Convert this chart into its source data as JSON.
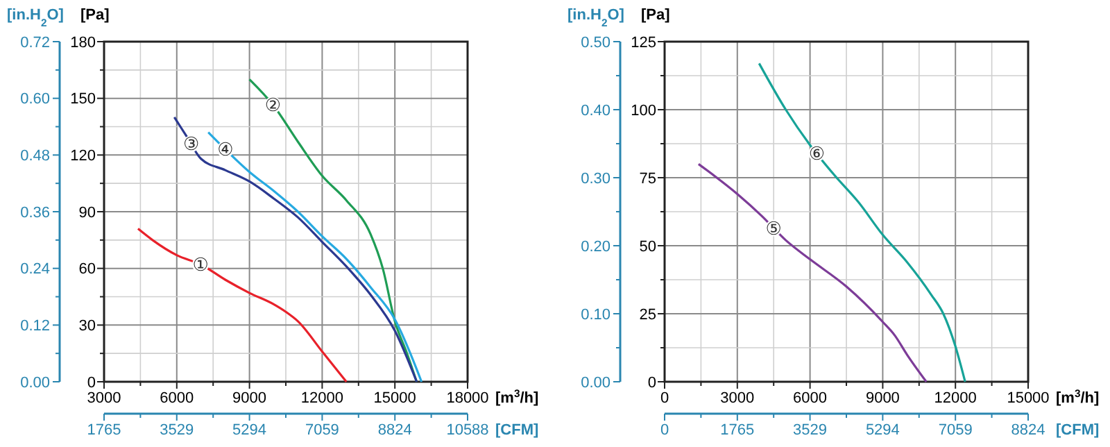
{
  "chart_data": [
    {
      "type": "line",
      "xlabel": "[m$^{3}$/h]",
      "ylabel": "[Pa]",
      "y2label": "[in.H$_{2}$O]",
      "x2label": "[CFM]",
      "grid": true,
      "marker": "none",
      "line_style": "solid",
      "xlim": [
        3000,
        18000
      ],
      "xticks": [
        3000,
        {
          "value": 4500,
          "label": null
        },
        6000,
        {
          "value": 7500,
          "label": null
        },
        9000,
        {
          "value": 10500,
          "label": null
        },
        12000,
        {
          "value": 13500,
          "label": null
        },
        15000,
        {
          "value": 16500,
          "label": null
        },
        18000
      ],
      "ylim": [
        0,
        180
      ],
      "yticks": [
        0,
        {
          "value": 15,
          "label": null
        },
        30,
        {
          "value": 45,
          "label": null
        },
        60,
        {
          "value": 75,
          "label": null
        },
        90,
        {
          "value": 105,
          "label": null
        },
        120,
        {
          "value": 135,
          "label": null
        },
        150,
        {
          "value": 165,
          "label": null
        },
        180
      ],
      "y2lim": [
        0,
        0.72
      ],
      "y2ticks": [
        {
          "value": 0,
          "label": "0.00"
        },
        {
          "value": 0.06,
          "label": null
        },
        0.12,
        {
          "value": 0.18,
          "label": null
        },
        0.24,
        {
          "value": 0.3,
          "label": null
        },
        0.36,
        {
          "value": 0.42,
          "label": null
        },
        0.48,
        {
          "value": 0.54,
          "label": null
        },
        {
          "value": 0.6,
          "label": "0.60"
        },
        {
          "value": 0.66,
          "label": null
        },
        0.72
      ],
      "x2lim": [
        1765,
        10588
      ],
      "x2ticks": [
        1765,
        {
          "value": 2647,
          "label": null
        },
        3529,
        {
          "value": 4412,
          "label": null
        },
        5294,
        {
          "value": 6176,
          "label": null
        },
        7059,
        {
          "value": 7941,
          "label": null
        },
        8824,
        {
          "value": 9706,
          "label": null
        },
        10588
      ],
      "series": [
        {
          "name": "①",
          "color": "#e8212a",
          "x": [
            4400,
            5000,
            6000,
            7000,
            8000,
            9000,
            10000,
            10500,
            11000,
            12000,
            13000
          ],
          "values": [
            81,
            75,
            67,
            62,
            54,
            47,
            41,
            37,
            32,
            16,
            0
          ]
        },
        {
          "name": "②",
          "color": "#1f9d55",
          "x": [
            9000,
            10000,
            11000,
            12000,
            13000,
            14000,
            14500,
            15000,
            15500,
            15900
          ],
          "values": [
            160,
            146,
            127,
            109,
            96,
            78,
            60,
            32,
            15,
            0
          ]
        },
        {
          "name": "③",
          "color": "#2b3990",
          "x": [
            5900,
            6400,
            7000,
            8000,
            9000,
            10000,
            11000,
            12000,
            13000,
            14000,
            15000,
            15900
          ],
          "values": [
            140,
            130,
            118,
            112,
            106,
            97,
            87,
            74,
            61,
            46,
            27,
            0
          ]
        },
        {
          "name": "④",
          "color": "#27aae1",
          "x": [
            7300,
            8000,
            9000,
            10000,
            11000,
            12000,
            13000,
            14000,
            15000,
            16100
          ],
          "values": [
            132,
            123,
            111,
            101,
            90,
            77,
            65,
            50,
            33,
            0
          ]
        }
      ]
    },
    {
      "type": "line",
      "xlabel": "[m$^{3}$/h]",
      "ylabel": "[Pa]",
      "y2label": "[in.H$_{2}$O]",
      "x2label": "[CFM]",
      "grid": true,
      "marker": "none",
      "line_style": "solid",
      "xlim": [
        0,
        15000
      ],
      "xticks": [
        0,
        {
          "value": 1500,
          "label": null
        },
        3000,
        {
          "value": 4500,
          "label": null
        },
        6000,
        {
          "value": 7500,
          "label": null
        },
        9000,
        {
          "value": 10500,
          "label": null
        },
        12000,
        {
          "value": 13500,
          "label": null
        },
        15000
      ],
      "ylim": [
        0,
        125
      ],
      "yticks": [
        0,
        {
          "value": 12.5,
          "label": null
        },
        25,
        {
          "value": 37.5,
          "label": null
        },
        50,
        {
          "value": 62.5,
          "label": null
        },
        75,
        {
          "value": 87.5,
          "label": null
        },
        100,
        {
          "value": 112.5,
          "label": null
        },
        125
      ],
      "y2lim": [
        0,
        0.5
      ],
      "y2ticks": [
        {
          "value": 0,
          "label": "0.00"
        },
        {
          "value": 0.05,
          "label": null
        },
        {
          "value": 0.1,
          "label": "0.10"
        },
        {
          "value": 0.15,
          "label": null
        },
        {
          "value": 0.2,
          "label": "0.20"
        },
        {
          "value": 0.25,
          "label": null
        },
        {
          "value": 0.3,
          "label": "0.30"
        },
        {
          "value": 0.35,
          "label": null
        },
        {
          "value": 0.4,
          "label": "0.40"
        },
        {
          "value": 0.45,
          "label": null
        },
        {
          "value": 0.5,
          "label": "0.50"
        }
      ],
      "x2lim": [
        0,
        8824
      ],
      "x2ticks": [
        0,
        {
          "value": 882,
          "label": null
        },
        1765,
        {
          "value": 2647,
          "label": null
        },
        3529,
        {
          "value": 4412,
          "label": null
        },
        5294,
        {
          "value": 6176,
          "label": null
        },
        7059,
        {
          "value": 7941,
          "label": null
        },
        8824
      ],
      "series": [
        {
          "name": "⑤",
          "color": "#7d3c98",
          "x": [
            1400,
            3000,
            4000,
            5000,
            6000,
            7500,
            9000,
            9500,
            10000,
            10800
          ],
          "values": [
            80,
            69,
            61,
            52,
            45,
            35,
            22,
            17,
            10,
            0
          ]
        },
        {
          "name": "⑥",
          "color": "#17a398",
          "x": [
            3900,
            5000,
            6000,
            7000,
            8000,
            9000,
            10000,
            11000,
            11500,
            12000,
            12400
          ],
          "values": [
            117,
            100,
            87,
            76,
            66,
            54,
            44,
            32,
            25,
            13,
            0
          ]
        }
      ]
    }
  ]
}
